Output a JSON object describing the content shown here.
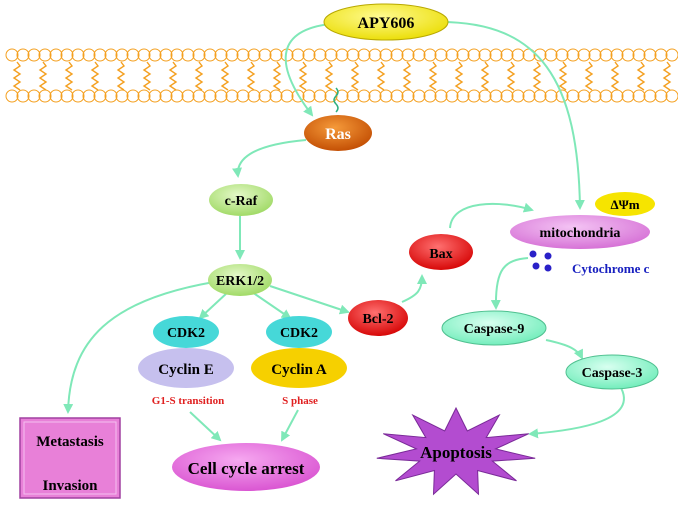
{
  "nodes": {
    "apy606": "APY606",
    "ras": "Ras",
    "craf": "c-Raf",
    "erk": "ERK1/2",
    "cdk2_a": "CDK2",
    "cyclin_e": "Cyclin E",
    "cdk2_b": "CDK2",
    "cyclin_a": "Cyclin A",
    "bcl2": "Bcl-2",
    "bax": "Bax",
    "mito": "mitochondria",
    "dpsim": "ΔΨm",
    "cytochrome": "Cytochrome c",
    "casp9": "Caspase-9",
    "casp3": "Caspase-3",
    "apoptosis": "Apoptosis",
    "g1s": "G1-S transition",
    "sphase": "S phase",
    "arrest": "Cell cycle arrest",
    "metastasis": "Metastasis",
    "invasion": "Invasion"
  },
  "colors": {
    "arrow": "#7fe8b8",
    "membrane": "#f4a020",
    "apy606": "#f2e400",
    "ras": "#d35a00",
    "craf": "#a8e070",
    "cdk2": "#46d8d8",
    "cyclin_e": "#c6c0ee",
    "cyclin_a": "#f6d000",
    "red": "#e81818",
    "mito": "#e080e0",
    "caspase": "#80f0c0",
    "apoptosis": "#b34cd0",
    "arrest": "#e060d8",
    "metastasis_box": "#e880d8",
    "phase_text": "#e02020",
    "cytochrome": "#1820c0"
  }
}
